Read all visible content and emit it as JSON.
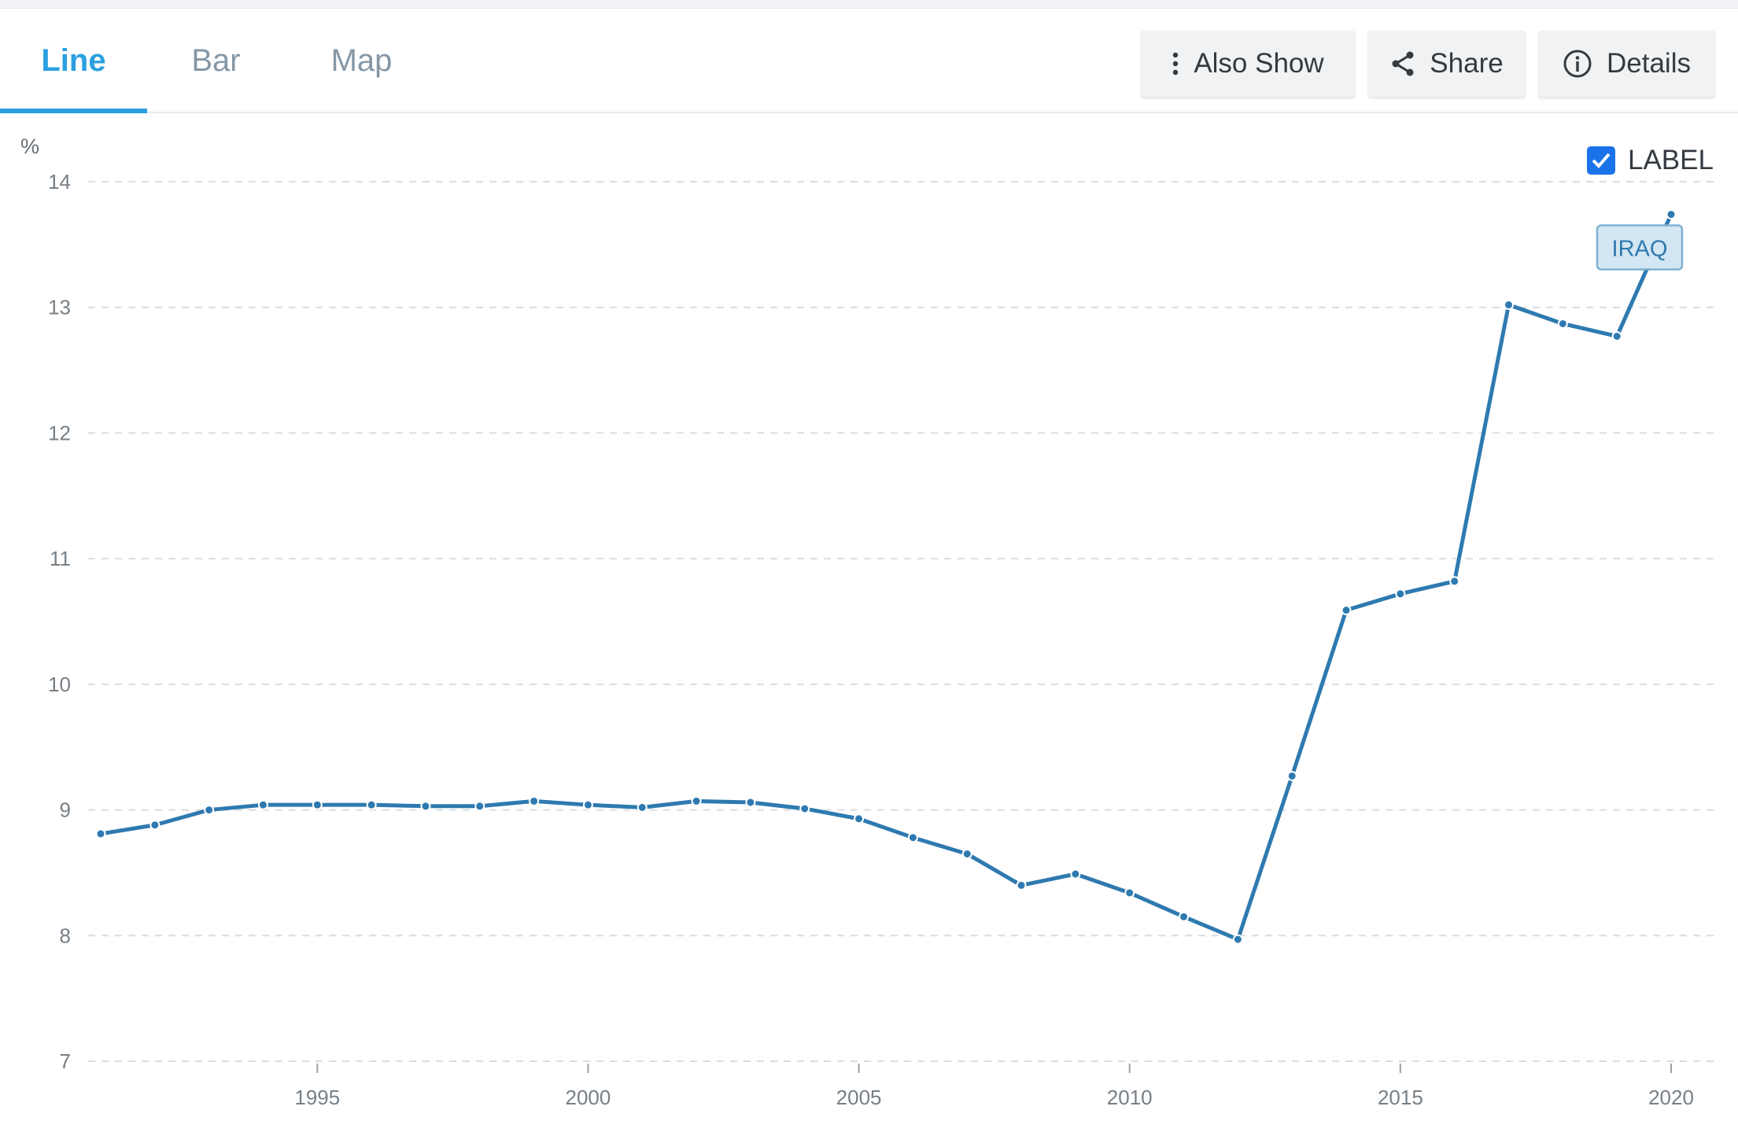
{
  "tabs": [
    {
      "label": "Line",
      "active": true
    },
    {
      "label": "Bar",
      "active": false
    },
    {
      "label": "Map",
      "active": false
    }
  ],
  "toolbar": {
    "also_show_label": "Also Show",
    "share_label": "Share",
    "details_label": "Details"
  },
  "legend": {
    "label": "LABEL",
    "checked": true
  },
  "colors": {
    "accent": "#2b9fe0",
    "series": "#2e7ab0",
    "tag_bg": "#d3e6f3",
    "tag_border": "#7fb0d3"
  },
  "chart_data": {
    "type": "line",
    "ylabel": "%",
    "ylim": [
      7,
      14
    ],
    "yticks": [
      7,
      8,
      9,
      10,
      11,
      12,
      13,
      14
    ],
    "xlim": [
      1991,
      2020
    ],
    "xticks": [
      1995,
      2000,
      2005,
      2010,
      2015,
      2020
    ],
    "grid": true,
    "series": [
      {
        "name": "IRAQ",
        "x": [
          1991,
          1992,
          1993,
          1994,
          1995,
          1996,
          1997,
          1998,
          1999,
          2000,
          2001,
          2002,
          2003,
          2004,
          2005,
          2006,
          2007,
          2008,
          2009,
          2010,
          2011,
          2012,
          2013,
          2014,
          2015,
          2016,
          2017,
          2018,
          2019,
          2020
        ],
        "y": [
          8.81,
          8.88,
          9.0,
          9.04,
          9.04,
          9.04,
          9.03,
          9.03,
          9.07,
          9.04,
          9.02,
          9.07,
          9.06,
          9.01,
          8.93,
          8.78,
          8.65,
          8.4,
          8.49,
          8.34,
          8.15,
          7.97,
          9.27,
          10.59,
          10.72,
          10.82,
          13.02,
          12.87,
          12.77,
          13.74
        ]
      }
    ]
  }
}
